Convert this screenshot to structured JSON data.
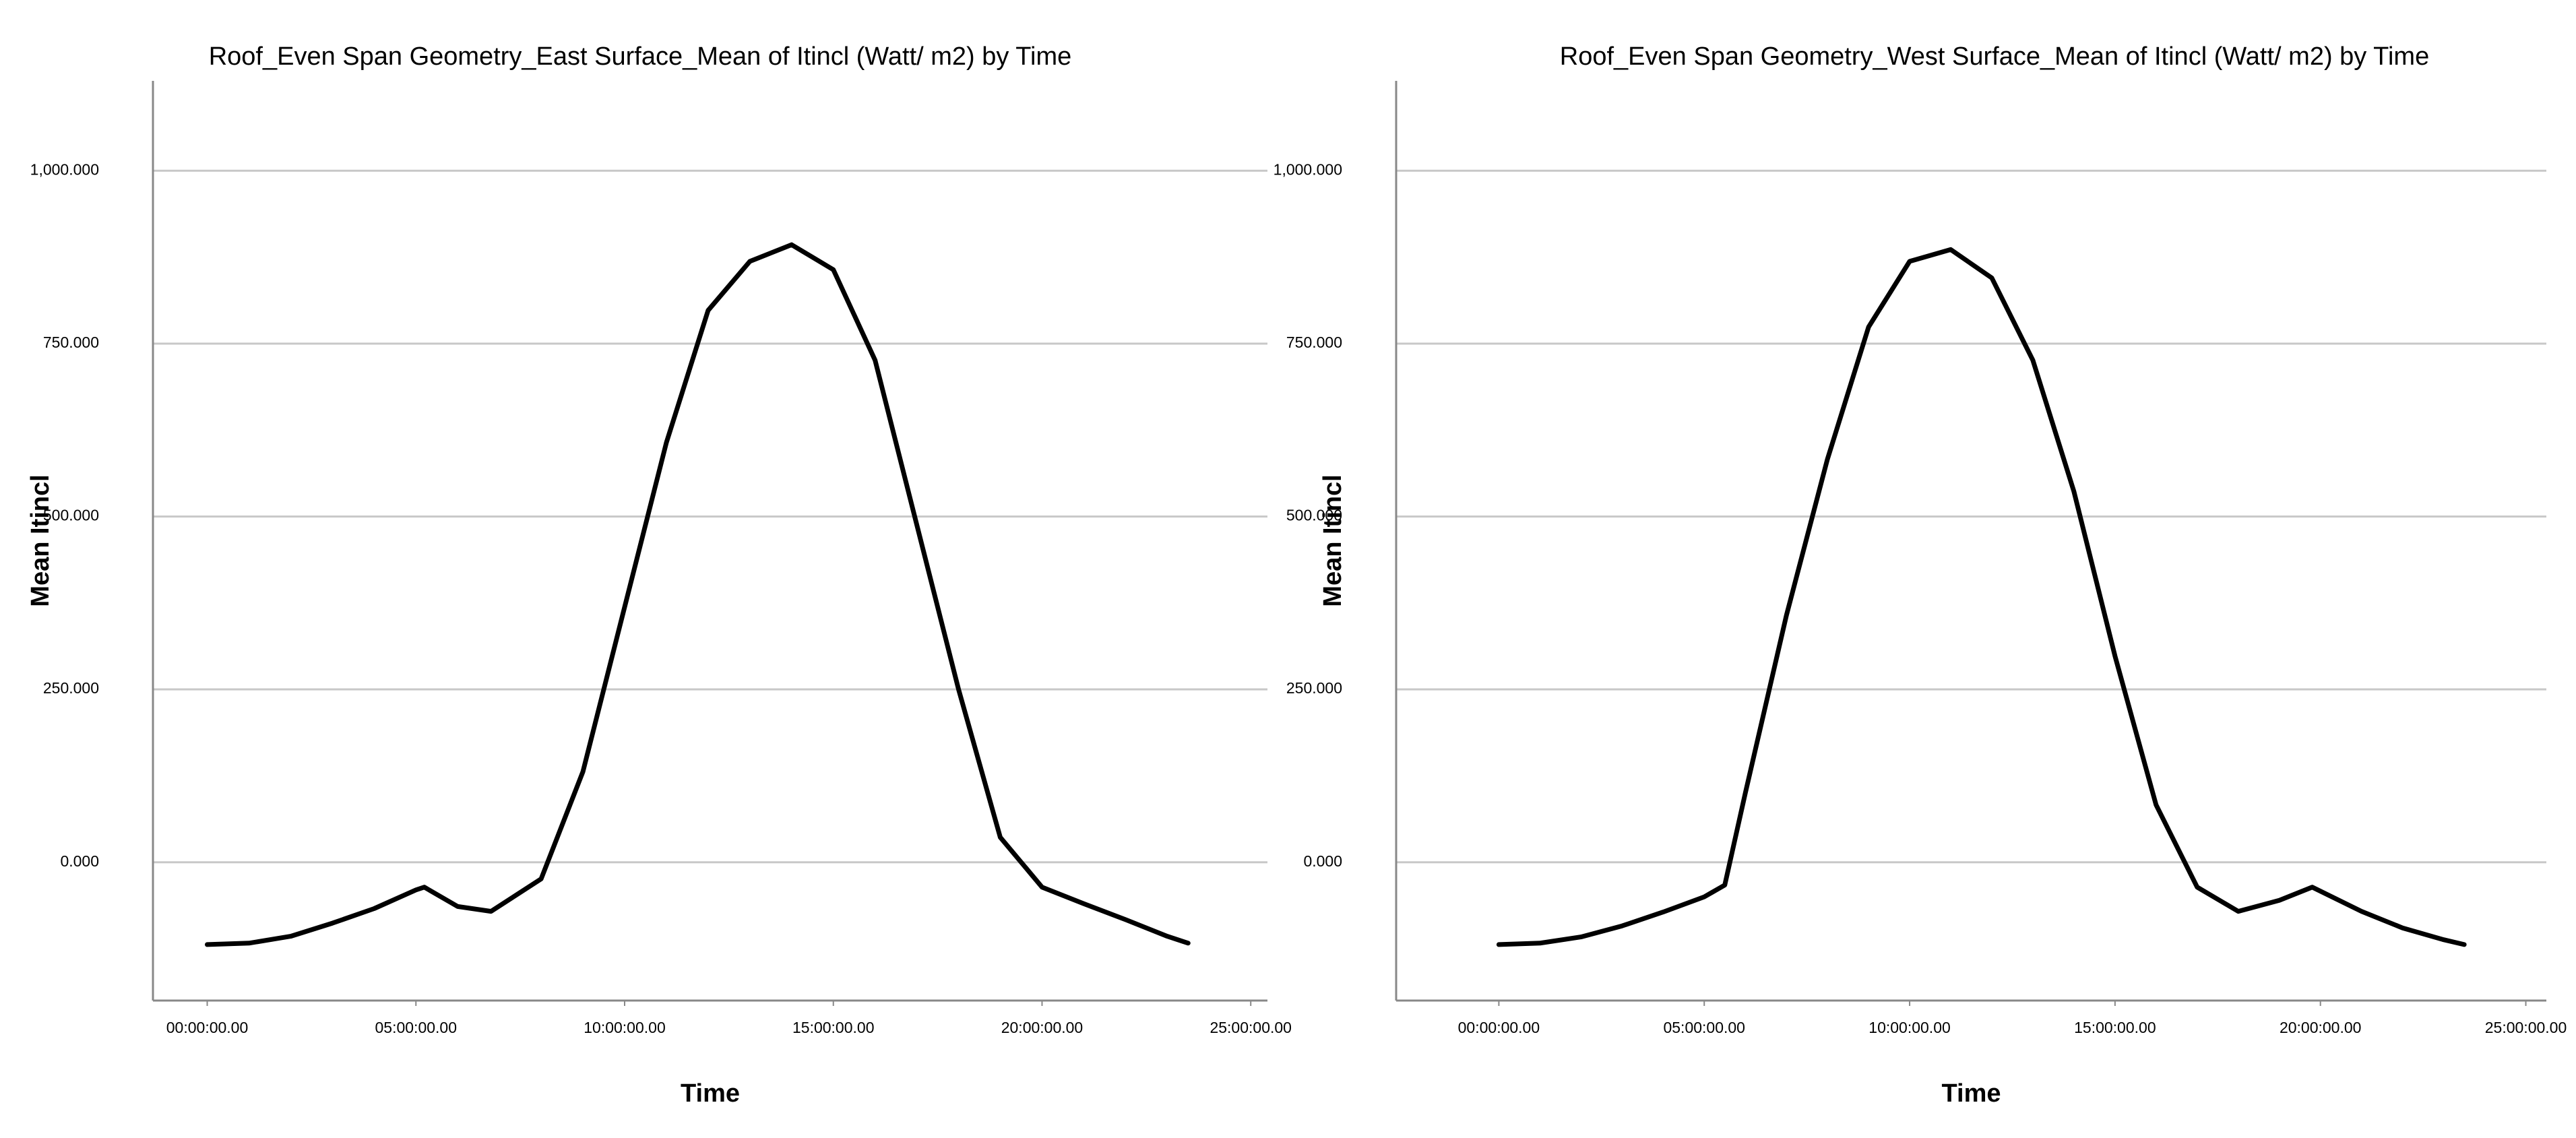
{
  "chart_data": [
    {
      "type": "line",
      "title": "Roof_Even Span Geometry_East Surface_Mean of Itincl (Watt/ m2) by Time",
      "x_label": "Time",
      "y_label": "Mean Itincl",
      "x": [
        0,
        1,
        2,
        3,
        4,
        5,
        5.2,
        6,
        6.8,
        8,
        9,
        10,
        11,
        12,
        13,
        14,
        15,
        16,
        17,
        18,
        19,
        20,
        21,
        22,
        23,
        23.5
      ],
      "values": [
        -119,
        -117,
        -107,
        -88,
        -67,
        -40,
        -36,
        -64,
        -71,
        -24,
        131,
        369,
        607,
        798,
        869,
        893,
        857,
        726,
        488,
        250,
        36,
        -36,
        -60,
        -83,
        -107,
        -117
      ],
      "color": "#000000",
      "xlim": [
        -1.3,
        25.4
      ],
      "xticks": [
        {
          "value": 0,
          "label": "00:00:00.00"
        },
        {
          "value": 5,
          "label": "05:00:00.00"
        },
        {
          "value": 10,
          "label": "10:00:00.00"
        },
        {
          "value": 15,
          "label": "15:00:00.00"
        },
        {
          "value": 20,
          "label": "20:00:00.00"
        },
        {
          "value": 25,
          "label": "25:00:00.00"
        }
      ],
      "ylim": [
        -200,
        1130
      ],
      "yticks": [
        {
          "value": 0,
          "label": "0.000"
        },
        {
          "value": 250,
          "label": "250.000"
        },
        {
          "value": 500,
          "label": "500.000"
        },
        {
          "value": 750,
          "label": "750.000"
        },
        {
          "value": 1000,
          "label": "1,000.000"
        }
      ],
      "grid": true
    },
    {
      "type": "line",
      "title": "Roof_Even Span Geometry_West Surface_Mean of Itincl (Watt/ m2) by Time",
      "x_label": "Time",
      "y_label": "Mean Itincl",
      "x": [
        0,
        1,
        2,
        3,
        4,
        5,
        5.5,
        6,
        7,
        8,
        9,
        10,
        11,
        12,
        13,
        14,
        15,
        16,
        17,
        18,
        19,
        19.8,
        21,
        22,
        23,
        23.5
      ],
      "values": [
        -119,
        -117,
        -108,
        -92,
        -72,
        -50,
        -33,
        100,
        357,
        583,
        774,
        869,
        886,
        845,
        726,
        536,
        298,
        83,
        -36,
        -71,
        -55,
        -36,
        -71,
        -95,
        -112,
        -119
      ],
      "color": "#000000",
      "xlim": [
        -2.5,
        25.5
      ],
      "xticks": [
        {
          "value": 0,
          "label": "00:00:00.00"
        },
        {
          "value": 5,
          "label": "05:00:00.00"
        },
        {
          "value": 10,
          "label": "10:00:00.00"
        },
        {
          "value": 15,
          "label": "15:00:00.00"
        },
        {
          "value": 20,
          "label": "20:00:00.00"
        },
        {
          "value": 25,
          "label": "25:00:00.00"
        }
      ],
      "ylim": [
        -200,
        1130
      ],
      "yticks": [
        {
          "value": 0,
          "label": "0.000"
        },
        {
          "value": 250,
          "label": "250.000"
        },
        {
          "value": 500,
          "label": "500.000"
        },
        {
          "value": 750,
          "label": "750.000"
        },
        {
          "value": 1000,
          "label": "1,000.000"
        }
      ],
      "grid": true
    }
  ]
}
